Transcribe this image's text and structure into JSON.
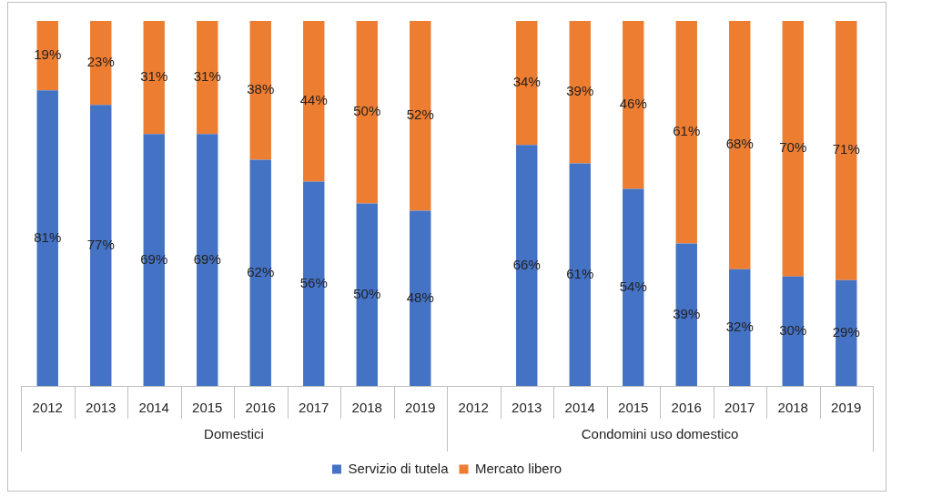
{
  "chart_data": {
    "type": "bar",
    "groups": [
      {
        "name": "Domestici",
        "categories": [
          "2012",
          "2013",
          "2014",
          "2015",
          "2016",
          "2017",
          "2018",
          "2019"
        ]
      },
      {
        "name": "Condomini uso domestico",
        "categories": [
          "2012",
          "2013",
          "2014",
          "2015",
          "2016",
          "2017",
          "2018",
          "2019"
        ]
      }
    ],
    "series": [
      {
        "name": "Servizio di tutela",
        "color": "#4472c4",
        "values": [
          81,
          77,
          69,
          69,
          62,
          56,
          50,
          48,
          null,
          66,
          61,
          54,
          39,
          32,
          30,
          29
        ],
        "value_labels": [
          "81%",
          "77%",
          "69%",
          "69%",
          "62%",
          "56%",
          "50%",
          "48%",
          null,
          "66%",
          "61%",
          "54%",
          "39%",
          "32%",
          "30%",
          "29%"
        ]
      },
      {
        "name": "Mercato libero",
        "color": "#ed7d31",
        "values": [
          19,
          23,
          31,
          31,
          38,
          44,
          50,
          52,
          null,
          34,
          39,
          46,
          61,
          68,
          70,
          71
        ],
        "value_labels": [
          "19%",
          "23%",
          "31%",
          "31%",
          "38%",
          "44%",
          "50%",
          "52%",
          null,
          "34%",
          "39%",
          "46%",
          "61%",
          "68%",
          "70%",
          "71%"
        ]
      }
    ],
    "ylim": [
      0,
      100
    ],
    "stacked": true,
    "data_labels": true,
    "tick_labels": "x",
    "grid": false,
    "legend": "bottom"
  }
}
